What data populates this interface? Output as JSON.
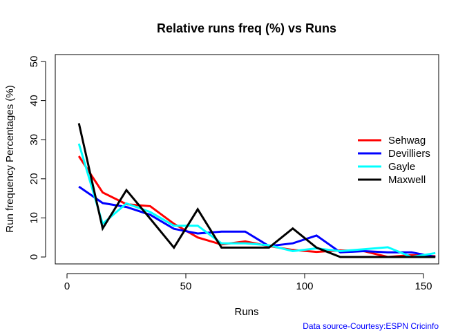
{
  "chart_data": {
    "type": "line",
    "title": "Relative runs freq (%) vs Runs",
    "xlabel": "Runs",
    "ylabel": "Run frequency Percentages (%)",
    "xlim": [
      0,
      155
    ],
    "ylim": [
      0,
      50
    ],
    "xticks": [
      0,
      50,
      100,
      150
    ],
    "yticks": [
      0,
      10,
      20,
      30,
      40,
      50
    ],
    "x": [
      5,
      15,
      25,
      35,
      45,
      55,
      65,
      75,
      85,
      95,
      105,
      115,
      125,
      135,
      145,
      155
    ],
    "legend_position": "right",
    "series": [
      {
        "name": "Sehwag",
        "color": "#ff0000",
        "values": [
          25.8,
          16.5,
          13.5,
          13.0,
          8.5,
          5.0,
          3.2,
          4.0,
          2.8,
          1.8,
          1.3,
          1.7,
          1.5,
          0.0,
          0.5,
          0.2
        ]
      },
      {
        "name": "Devilliers",
        "color": "#0000ff",
        "values": [
          18.0,
          13.8,
          12.8,
          10.8,
          7.2,
          6.0,
          6.5,
          6.5,
          2.8,
          3.5,
          5.5,
          1.2,
          1.5,
          1.2,
          1.2,
          0.0
        ]
      },
      {
        "name": "Gayle",
        "color": "#00ffff",
        "values": [
          29.0,
          8.5,
          13.7,
          11.5,
          8.0,
          8.0,
          3.5,
          3.5,
          3.0,
          1.5,
          2.2,
          1.5,
          2.0,
          2.5,
          0.0,
          1.0
        ]
      },
      {
        "name": "Maxwell",
        "color": "#000000",
        "values": [
          34.2,
          7.3,
          17.1,
          9.8,
          2.4,
          12.2,
          2.4,
          2.4,
          2.4,
          7.3,
          2.4,
          0.0,
          0.0,
          0.0,
          0.0,
          0.0
        ]
      }
    ],
    "source_note": "Data source-Courtesy:ESPN Cricinfo",
    "source_color": "#0000ff"
  }
}
